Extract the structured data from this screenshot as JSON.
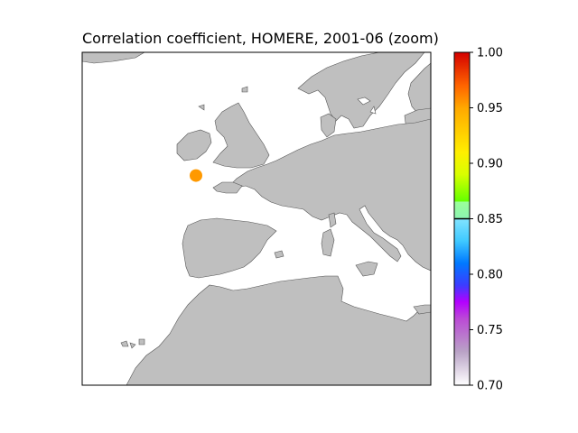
{
  "title": "Correlation coefficient, HOMERE, 2001-06 (zoom)",
  "colors": {
    "land": "#bfbfbf",
    "sea": "#ffffff",
    "coastline": "#555555",
    "marker": "#ff9900"
  },
  "markers": [
    {
      "name": "station-marker",
      "lon": -5.0,
      "lat": 48.3,
      "value": 0.945
    }
  ],
  "colorbar": {
    "min": 0.7,
    "max": 1.0,
    "ticks": [
      "0.70",
      "0.75",
      "0.80",
      "0.85",
      "0.90",
      "0.95",
      "1.00"
    ],
    "threshold": 0.85,
    "threshold_color": "#000000",
    "stops": [
      {
        "v": 0.7,
        "c": "#ffffff"
      },
      {
        "v": 0.73,
        "c": "#b9a3c6"
      },
      {
        "v": 0.76,
        "c": "#bb4ad6"
      },
      {
        "v": 0.775,
        "c": "#b300ff"
      },
      {
        "v": 0.79,
        "c": "#3c3cff"
      },
      {
        "v": 0.81,
        "c": "#0079ff"
      },
      {
        "v": 0.83,
        "c": "#3fc9ff"
      },
      {
        "v": 0.849,
        "c": "#7ee2ff"
      },
      {
        "v": 0.851,
        "c": "#8df5b0"
      },
      {
        "v": 0.865,
        "c": "#9aff9a"
      },
      {
        "v": 0.866,
        "c": "#66ff00"
      },
      {
        "v": 0.89,
        "c": "#d9ff00"
      },
      {
        "v": 0.91,
        "c": "#ffee00"
      },
      {
        "v": 0.95,
        "c": "#ffa800"
      },
      {
        "v": 0.97,
        "c": "#ff6400"
      },
      {
        "v": 1.0,
        "c": "#d40000"
      }
    ]
  }
}
